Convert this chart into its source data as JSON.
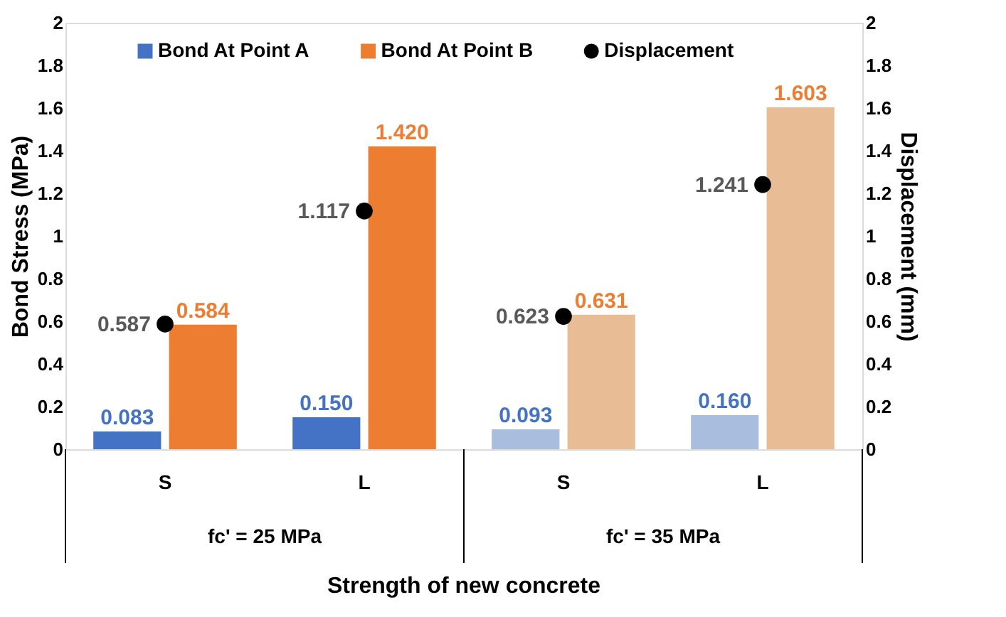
{
  "chart_data": {
    "type": "bar",
    "xlabel": "Strength of new concrete",
    "ylabel": "Bond Stress (MPa)",
    "y2label": "Displacement (mm)",
    "categories": [
      "S",
      "L",
      "S",
      "L"
    ],
    "series": [
      {
        "name": "Bond At Point A",
        "color": "#4472c4",
        "colors": [
          "#4472c4",
          "#4472c4",
          "#a9bedf",
          "#a9bedf"
        ],
        "values": [
          0.083,
          0.15,
          0.093,
          0.16
        ],
        "value_labels": [
          "0.083",
          "0.150",
          "0.093",
          "0.160"
        ]
      },
      {
        "name": "Bond At Point B",
        "color": "#ed7d31",
        "colors": [
          "#ed7d31",
          "#ed7d31",
          "#e8bd96",
          "#e8bd96"
        ],
        "values": [
          0.584,
          1.42,
          0.631,
          1.603
        ],
        "value_labels": [
          "0.584",
          "1.420",
          "0.631",
          "1.603"
        ]
      },
      {
        "name": "Displacement",
        "type": "scatter",
        "axis": "y2",
        "color": "#000000",
        "marker": "circle",
        "values": [
          0.587,
          1.117,
          0.623,
          1.241
        ],
        "value_labels": [
          "0.587",
          "1.117",
          "0.623",
          "1.241"
        ]
      }
    ],
    "annotations": [
      "fc' = 25 MPa",
      "fc' = 35 MPa"
    ],
    "ylim": [
      0,
      2
    ],
    "yticks": [
      0,
      0.2,
      0.4,
      0.6,
      0.8,
      1,
      1.2,
      1.4,
      1.6,
      1.8,
      2
    ],
    "y2lim": [
      0,
      2
    ],
    "y2ticks": [
      0,
      0.2,
      0.4,
      0.6,
      0.8,
      1,
      1.2,
      1.4,
      1.6,
      1.8,
      2
    ],
    "grid": false,
    "legend": "top"
  }
}
